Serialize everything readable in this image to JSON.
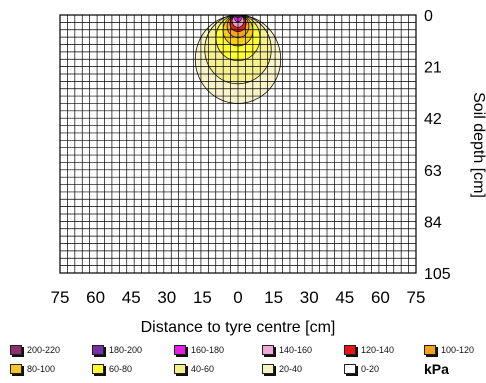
{
  "chart_data": {
    "type": "contour",
    "xlabel": "Distance to tyre centre [cm]",
    "ylabel": "Soil depth [cm]",
    "x_ticks": [
      "75",
      "60",
      "45",
      "30",
      "15",
      "0",
      "15",
      "30",
      "45",
      "60",
      "75"
    ],
    "x_range": [
      -75,
      75
    ],
    "y_ticks": [
      "0",
      "21",
      "42",
      "63",
      "84",
      "105"
    ],
    "y_range": [
      0,
      105
    ],
    "grid": true,
    "unit": "kPa",
    "legend": [
      {
        "label": "200-220",
        "color": "#8e2f6d"
      },
      {
        "label": "180-200",
        "color": "#7a2fa6"
      },
      {
        "label": "160-180",
        "color": "#e61ee6"
      },
      {
        "label": "140-160",
        "color": "#f2a6d6"
      },
      {
        "label": "120-140",
        "color": "#e61414"
      },
      {
        "label": "100-120",
        "color": "#f5a01e"
      },
      {
        "label": "80-100",
        "color": "#f5c81e"
      },
      {
        "label": "60-80",
        "color": "#ffff2e"
      },
      {
        "label": "40-60",
        "color": "#f5f08c"
      },
      {
        "label": "20-40",
        "color": "#f7f2c4"
      },
      {
        "label": "0-20",
        "color": "#ffffff"
      }
    ],
    "contours": [
      {
        "range": "20-40",
        "centre_x": 0,
        "radius": 18
      },
      {
        "range": "40-60",
        "centre_x": 0,
        "radius": 14
      },
      {
        "range": "60-80",
        "centre_x": 0,
        "radius": 9.3
      },
      {
        "range": "80-100",
        "centre_x": 0,
        "radius": 6.3
      },
      {
        "range": "100-120",
        "centre_x": 0,
        "radius": 4.6
      },
      {
        "range": "120-140",
        "centre_x": 0,
        "radius": 3.4
      },
      {
        "range": "140-160",
        "centre_x": 0,
        "radius": 2.5
      },
      {
        "range": "160-180",
        "centre_x": 0,
        "radius": 1.4
      },
      {
        "range": "180-200",
        "centre_x": 0,
        "radius": 0.6
      }
    ]
  }
}
